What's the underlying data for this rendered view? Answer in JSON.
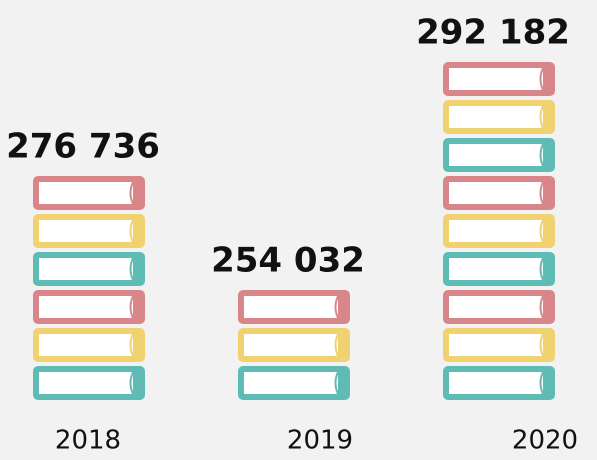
{
  "chart_data": {
    "type": "pictograph",
    "categories": [
      "2018",
      "2019",
      "2020"
    ],
    "values": [
      276736,
      254032,
      292182
    ],
    "value_labels": [
      "276 736",
      "254 032",
      "292 182"
    ],
    "books": [
      6,
      3,
      9
    ],
    "colors": [
      "#5fbcb5",
      "#f0d270",
      "#d9868a"
    ]
  }
}
